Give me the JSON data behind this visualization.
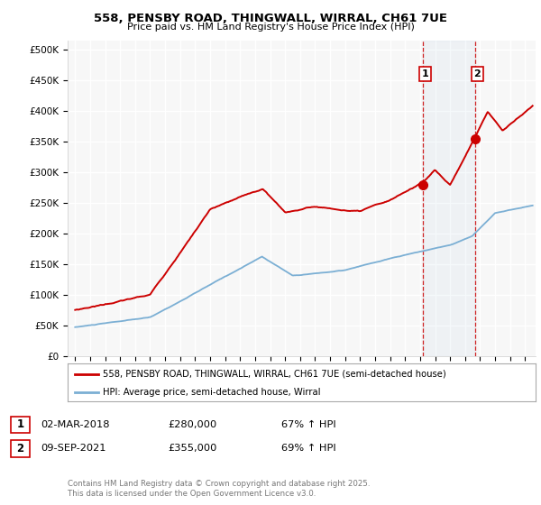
{
  "title_line1": "558, PENSBY ROAD, THINGWALL, WIRRAL, CH61 7UE",
  "title_line2": "Price paid vs. HM Land Registry's House Price Index (HPI)",
  "background_color": "#ffffff",
  "plot_bg_color": "#f7f7f7",
  "grid_color": "white",
  "red_color": "#cc0000",
  "blue_color": "#7bafd4",
  "sale1_x": 2018.17,
  "sale1_y": 280000,
  "sale1_date": "02-MAR-2018",
  "sale1_price": 280000,
  "sale1_hpi": "67% ↑ HPI",
  "sale2_x": 2021.67,
  "sale2_y": 355000,
  "sale2_date": "09-SEP-2021",
  "sale2_price": 355000,
  "sale2_hpi": "69% ↑ HPI",
  "legend_label1": "558, PENSBY ROAD, THINGWALL, WIRRAL, CH61 7UE (semi-detached house)",
  "legend_label2": "HPI: Average price, semi-detached house, Wirral",
  "footer": "Contains HM Land Registry data © Crown copyright and database right 2025.\nThis data is licensed under the Open Government Licence v3.0.",
  "yticks": [
    0,
    50000,
    100000,
    150000,
    200000,
    250000,
    300000,
    350000,
    400000,
    450000,
    500000
  ],
  "ylabels": [
    "£0",
    "£50K",
    "£100K",
    "£150K",
    "£200K",
    "£250K",
    "£300K",
    "£350K",
    "£400K",
    "£450K",
    "£500K"
  ],
  "xmin": 1994.5,
  "xmax": 2025.7,
  "ymin": 0,
  "ymax": 515000
}
